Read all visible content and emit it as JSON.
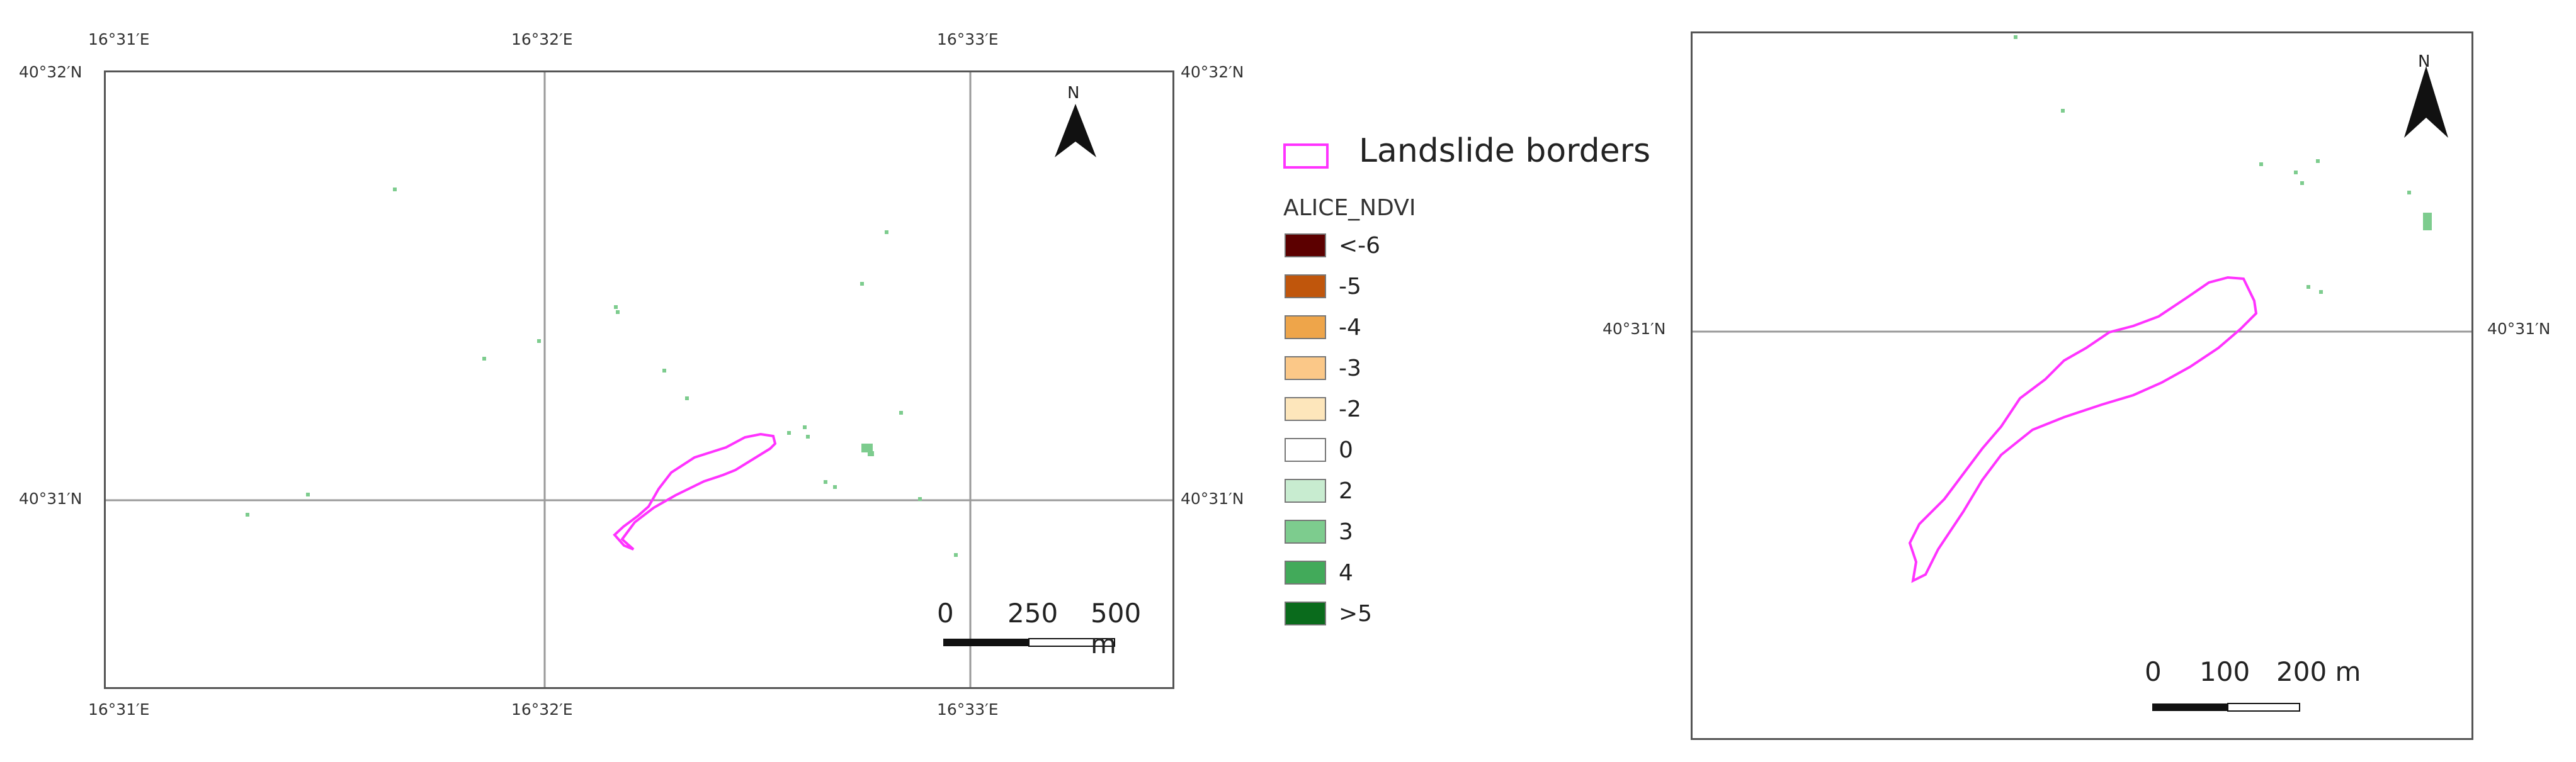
{
  "left_map": {
    "top_labels": [
      "16°31′E",
      "16°32′E",
      "16°33′E"
    ],
    "bottom_labels": [
      "16°31′E",
      "16°32′E",
      "16°33′E"
    ],
    "left_labels": [
      "40°32′N",
      "40°31′N"
    ],
    "right_labels": [
      "40°32′N",
      "40°31′N"
    ],
    "north_label": "N",
    "scale": {
      "zero": "0",
      "mid": "250",
      "end": "500 m"
    }
  },
  "right_map": {
    "left_labels": [
      "40°31′N"
    ],
    "right_labels": [
      "40°31′N"
    ],
    "north_label": "N",
    "scale": {
      "zero": "0",
      "mid": "100",
      "end": "200 m"
    }
  },
  "legend": {
    "boundary_label": "Landslide borders",
    "boundary_color": "#ff33ff",
    "layer_title": "ALICE_NDVI",
    "classes": [
      {
        "label": "<-6",
        "color": "#5c0000"
      },
      {
        "label": "-5",
        "color": "#c0560c"
      },
      {
        "label": "-4",
        "color": "#eea54a"
      },
      {
        "label": "-3",
        "color": "#fbc888"
      },
      {
        "label": "-2",
        "color": "#fde6bb"
      },
      {
        "label": "0",
        "color": "#ffffff"
      },
      {
        "label": "2",
        "color": "#c8ecd0"
      },
      {
        "label": "3",
        "color": "#7dcc8e"
      },
      {
        "label": "4",
        "color": "#42aa5a"
      },
      {
        "label": ">5",
        "color": "#0a6b1c"
      }
    ]
  }
}
